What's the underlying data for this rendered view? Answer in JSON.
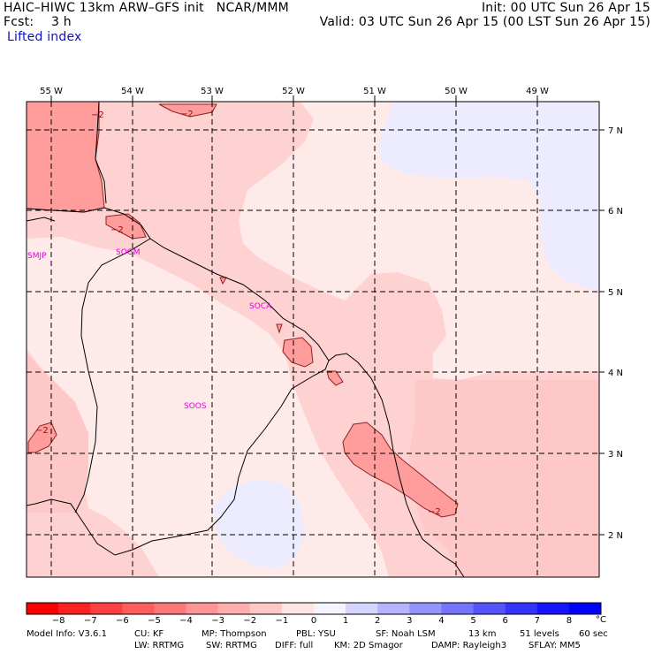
{
  "header": {
    "model_line": "HAIC–HIWC 13km ARW–GFS init   NCAR/MMM",
    "fcst_label": "Fcst:",
    "fcst_value": "3 h",
    "field_name": "Lifted index",
    "init": "Init: 00 UTC Sun 26 Apr 15",
    "valid": "Valid: 03 UTC Sun 26 Apr 15 (00 LST Sun 26 Apr 15)"
  },
  "map": {
    "lon_labels": [
      "55 W",
      "54 W",
      "53 W",
      "52 W",
      "51 W",
      "50 W",
      "49 W"
    ],
    "lat_labels": [
      "7 N",
      "6 N",
      "5 N",
      "4 N",
      "3 N",
      "2 N"
    ],
    "contour_labels": [
      "−2",
      "−2",
      "−2",
      "−2",
      "−2"
    ],
    "stations": [
      "SMJP",
      "SOGM",
      "SOCA",
      "SOOS"
    ],
    "colors": {
      "pink_light": "#ffd2d2",
      "pink_mid": "#ffc0c0",
      "pink_dark": "#ff9c9c",
      "pale": "#ffeaea",
      "lavender": "#ececfe",
      "coast": "#000000",
      "station": "#e000e0"
    }
  },
  "colorbar": {
    "ticks": [
      "−8",
      "−7",
      "−6",
      "−5",
      "−4",
      "−3",
      "−2",
      "−1",
      "0",
      "1",
      "2",
      "3",
      "4",
      "5",
      "6",
      "7",
      "8"
    ],
    "unit": "°C",
    "colors": [
      "#ff0000",
      "#ff2020",
      "#ff4040",
      "#ff5c5c",
      "#ff7878",
      "#ff9494",
      "#ffaeae",
      "#ffc8c8",
      "#ffe4e4",
      "#f4f4ff",
      "#d4d4ff",
      "#b4b4ff",
      "#9494ff",
      "#7474ff",
      "#5454ff",
      "#3434ff",
      "#1414ff",
      "#0000ff"
    ]
  },
  "footer": {
    "line1": [
      "Model Info: V3.6.1",
      "CU: KF",
      "MP: Thompson",
      "PBL: YSU",
      "SF: Noah LSM",
      "13 km",
      "51 levels",
      "60 sec"
    ],
    "line2": [
      "LW: RRTMG",
      "SW: RRTMG",
      "DIFF: full",
      "KM: 2D Smagor",
      "DAMP: Rayleigh3",
      "SFLAY: MM5"
    ]
  }
}
